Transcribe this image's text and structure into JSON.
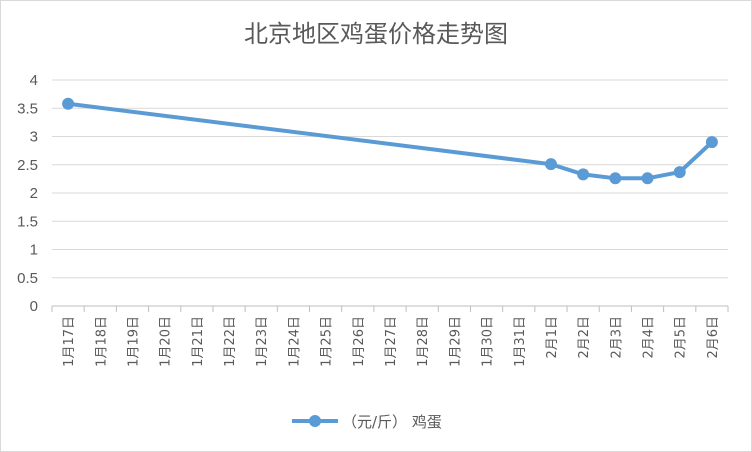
{
  "chart_data": {
    "type": "line",
    "title": "北京地区鸡蛋价格走势图",
    "xlabel": "",
    "ylabel": "",
    "ylim": [
      0,
      4
    ],
    "yticks": [
      "0",
      "0.5",
      "1",
      "1.5",
      "2",
      "2.5",
      "3",
      "3.5",
      "4"
    ],
    "categories": [
      "1月17日",
      "1月18日",
      "1月19日",
      "1月20日",
      "1月21日",
      "1月22日",
      "1月23日",
      "1月24日",
      "1月25日",
      "1月26日",
      "1月27日",
      "1月28日",
      "1月29日",
      "1月30日",
      "1月31日",
      "2月1日",
      "2月2日",
      "2月3日",
      "2月4日",
      "2月5日",
      "2月6日"
    ],
    "series": [
      {
        "name": "（元/斤） 鸡蛋",
        "color": "#5b9bd5",
        "values": [
          3.58,
          null,
          null,
          null,
          null,
          null,
          null,
          null,
          null,
          null,
          null,
          null,
          null,
          null,
          null,
          2.51,
          2.33,
          2.26,
          2.26,
          2.37,
          2.9
        ]
      }
    ],
    "grid": true,
    "legend_position": "bottom"
  }
}
